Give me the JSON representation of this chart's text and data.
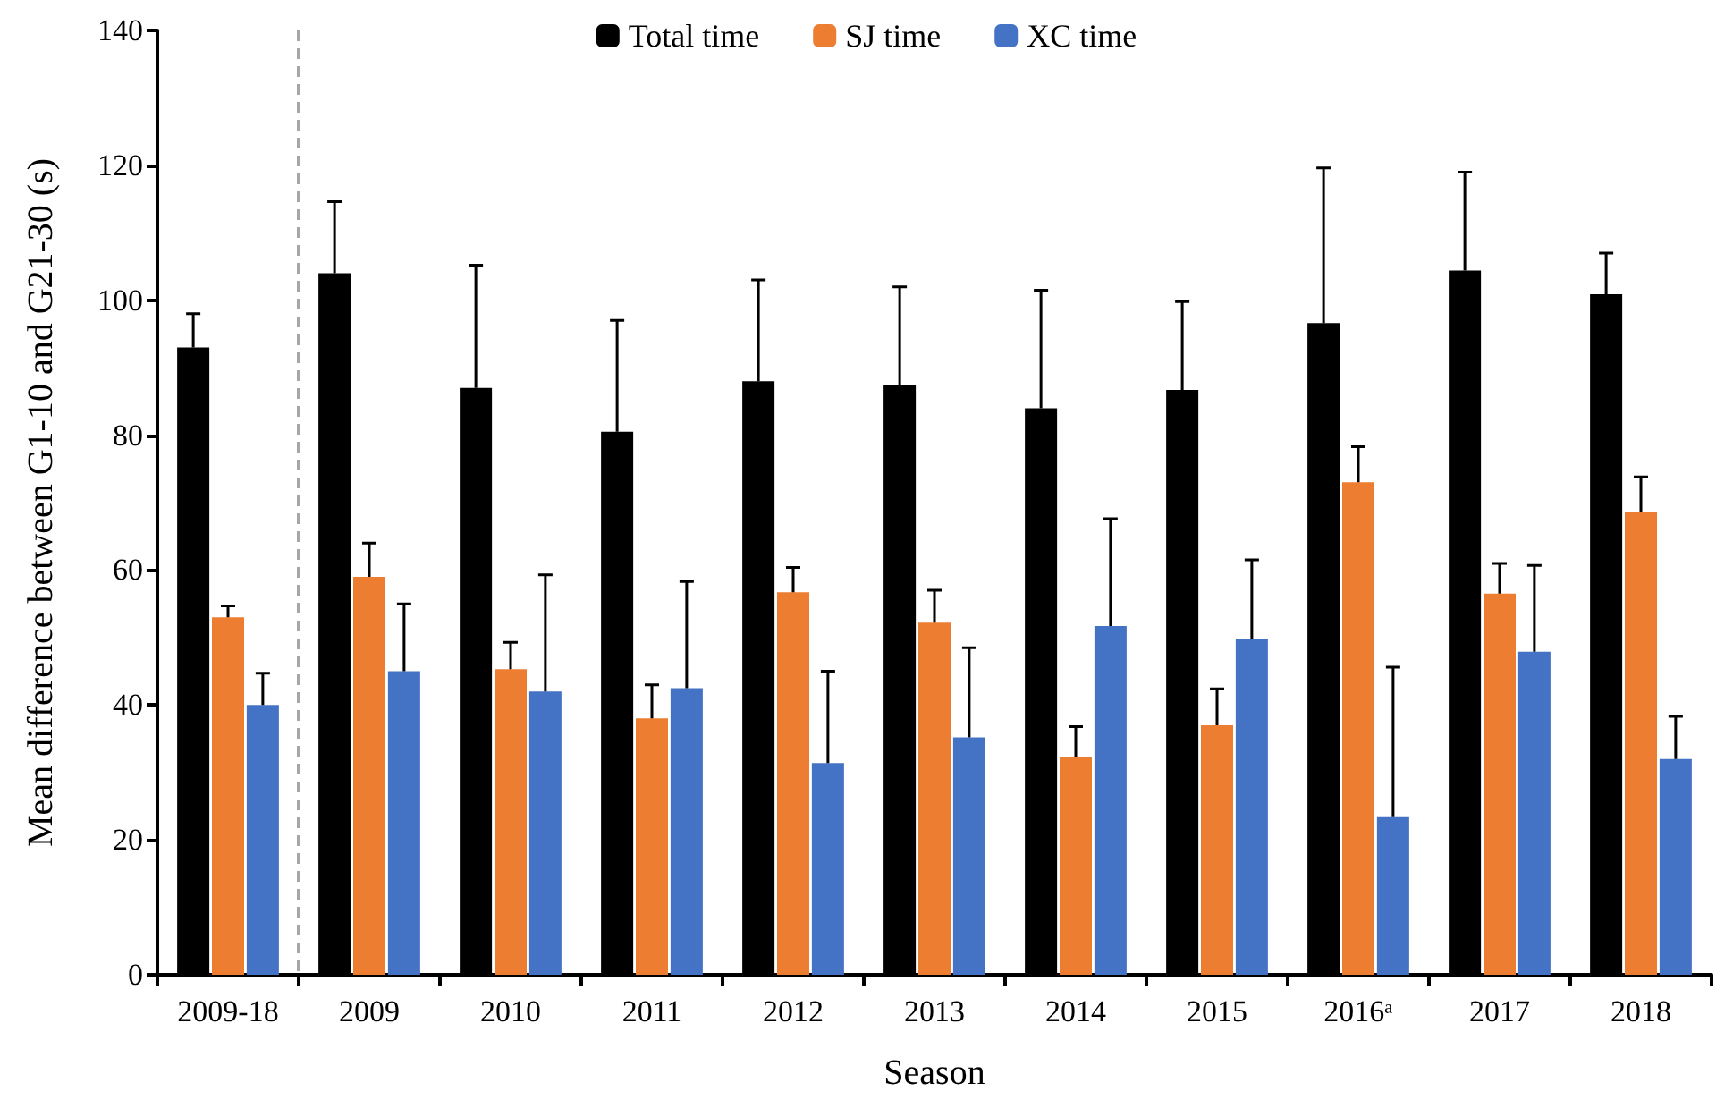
{
  "chart_data": {
    "type": "bar",
    "ylabel": "Mean difference between G1-10 and G21-30 (s)",
    "xlabel": "Season",
    "categories": [
      "2009-18",
      "2009",
      "2010",
      "2011",
      "2012",
      "2013",
      "2014",
      "2015",
      "2016ᵃ",
      "2017",
      "2018"
    ],
    "series": [
      {
        "name": "Total time",
        "color": "#000000",
        "values": [
          93,
          104,
          87,
          80.5,
          88,
          87.5,
          84,
          86.7,
          96.6,
          104.4,
          100.9
        ],
        "errors": [
          [
            93,
            98
          ],
          [
            104,
            114.6
          ],
          [
            87,
            105.2
          ],
          [
            80.5,
            97
          ],
          [
            88,
            103
          ],
          [
            87.5,
            102
          ],
          [
            84,
            101.5
          ],
          [
            86.7,
            99.8
          ],
          [
            96.6,
            119.6
          ],
          [
            104.4,
            119
          ],
          [
            100.9,
            107
          ]
        ]
      },
      {
        "name": "SJ time",
        "color": "#ed7d31",
        "values": [
          53,
          59,
          45.3,
          38,
          56.7,
          52.2,
          32.2,
          37,
          73,
          56.5,
          68.6
        ],
        "errors": [
          [
            53,
            54.7
          ],
          [
            59,
            64
          ],
          [
            45.3,
            49.3
          ],
          [
            38,
            43
          ],
          [
            56.7,
            60.4
          ],
          [
            52.2,
            57
          ],
          [
            32.2,
            36.8
          ],
          [
            37,
            42.4
          ],
          [
            73,
            78.3
          ],
          [
            56.5,
            61
          ],
          [
            68.6,
            73.8
          ]
        ]
      },
      {
        "name": "XC time",
        "color": "#4472c4",
        "values": [
          40,
          45,
          42,
          42.5,
          31.4,
          35.2,
          51.7,
          49.7,
          23.5,
          47.9,
          32
        ],
        "errors": [
          [
            40,
            44.7
          ],
          [
            45,
            55
          ],
          [
            42,
            59.3
          ],
          [
            42.5,
            58.3
          ],
          [
            31.4,
            45
          ],
          [
            35.2,
            48.5
          ],
          [
            51.7,
            67.6
          ],
          [
            49.7,
            61.5
          ],
          [
            23.5,
            45.6
          ],
          [
            47.9,
            60.7
          ],
          [
            32,
            38.3
          ]
        ]
      }
    ],
    "ylim": [
      0,
      140
    ],
    "yticks": [
      0,
      20,
      40,
      60,
      80,
      100,
      120,
      140
    ],
    "grid": false,
    "legend": "top right"
  }
}
